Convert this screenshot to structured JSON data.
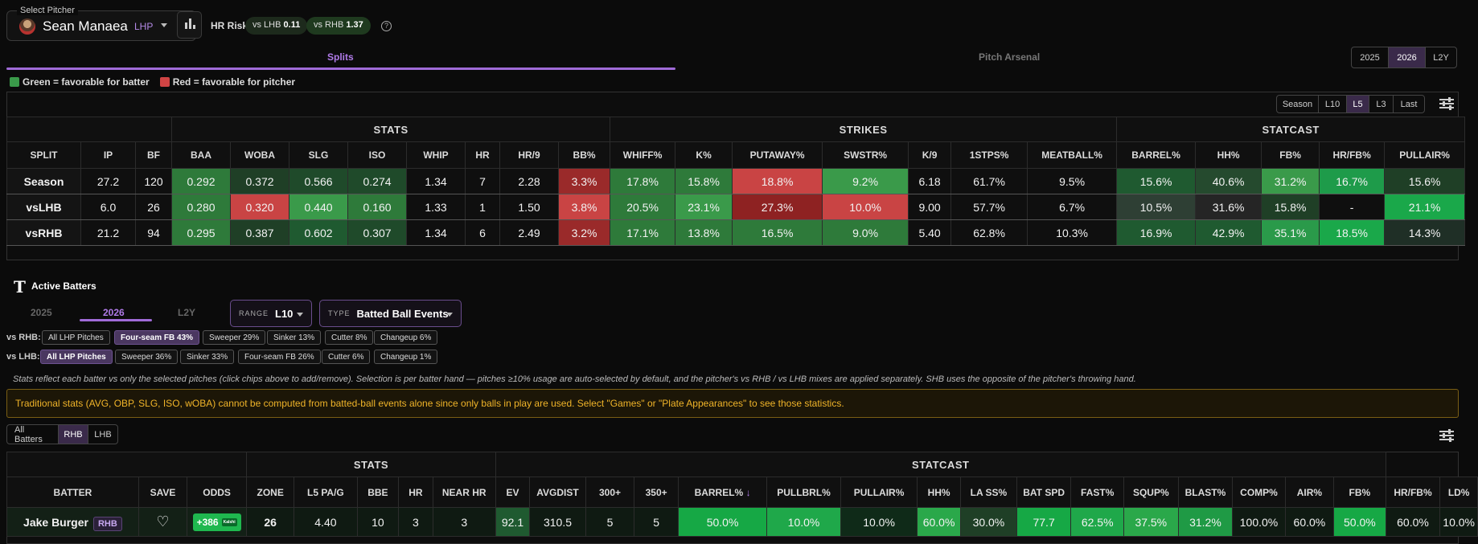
{
  "header": {
    "select_label": "Select Pitcher",
    "pitcher_name": "Sean Manaea",
    "pitcher_hand": "LHP",
    "hr_risk_label": "HR Risk",
    "vs_lhb_label": "vs LHB",
    "vs_lhb_value": "0.11",
    "vs_rhb_label": "vs RHB",
    "vs_rhb_value": "1.37",
    "help": "?"
  },
  "tabs": {
    "splits": "Splits",
    "arsenal": "Pitch Arsenal"
  },
  "year_seg": [
    {
      "label": "2025",
      "on": false
    },
    {
      "label": "2026",
      "on": true
    },
    {
      "label": "L2Y",
      "on": false
    }
  ],
  "legend": {
    "green": "Green = favorable for batter",
    "red": "Red = favorable for pitcher",
    "green_color": "#3a9a4a",
    "red_color": "#d04444"
  },
  "range_seg": [
    {
      "label": "Season",
      "on": false
    },
    {
      "label": "L10",
      "on": false
    },
    {
      "label": "L5",
      "on": true
    },
    {
      "label": "L3",
      "on": false
    },
    {
      "label": "Last",
      "on": false
    }
  ],
  "splits": {
    "groups": [
      {
        "label": "",
        "span": 3
      },
      {
        "label": "STATS",
        "span": 8
      },
      {
        "label": "STRIKES",
        "span": 7
      },
      {
        "label": "STATCAST",
        "span": 5
      }
    ],
    "columns": [
      "SPLIT",
      "IP",
      "BF",
      "BAA",
      "WOBA",
      "SLG",
      "ISO",
      "WHIP",
      "HR",
      "HR/9",
      "BB%",
      "WHIFF%",
      "K%",
      "PUTAWAY%",
      "SWSTR%",
      "K/9",
      "1STPS%",
      "MEATBALL%",
      "BARREL%",
      "HH%",
      "FB%",
      "HR/FB%",
      "PULLAIR%"
    ],
    "rows": [
      {
        "cells": [
          "Season",
          "27.2",
          "120",
          "0.292",
          "0.372",
          "0.566",
          "0.274",
          "1.34",
          "7",
          "2.28",
          "3.3%",
          "17.8%",
          "15.8%",
          "18.8%",
          "9.2%",
          "6.18",
          "61.7%",
          "9.5%",
          "15.6%",
          "40.6%",
          "31.2%",
          "16.7%",
          "15.6%"
        ],
        "colors": [
          "#141414",
          "#0f0f0f",
          "#0f0f0f",
          "#2e7a3a",
          "#1f3f26",
          "#1f4a2a",
          "#1f4a2a",
          "#0f0f0f",
          "#0f0f0f",
          "#0f0f0f",
          "#9a2a2a",
          "#2e7a3a",
          "#2e7a3a",
          "#c94444",
          "#3a9a4a",
          "#0f0f0f",
          "#0f0f0f",
          "#0f0f0f",
          "#1f5a30",
          "#254a2e",
          "#3a9a4a",
          "#1e9b4a",
          "#1f3f26"
        ]
      },
      {
        "cells": [
          "vsLHB",
          "6.0",
          "26",
          "0.280",
          "0.320",
          "0.440",
          "0.160",
          "1.33",
          "1",
          "1.50",
          "3.8%",
          "20.5%",
          "23.1%",
          "27.3%",
          "10.0%",
          "9.00",
          "57.7%",
          "6.7%",
          "10.5%",
          "31.6%",
          "15.8%",
          "-",
          "21.1%"
        ],
        "colors": [
          "#141414",
          "#0f0f0f",
          "#0f0f0f",
          "#2e7a3a",
          "#c94444",
          "#3a9a4a",
          "#2e7a3a",
          "#0f0f0f",
          "#0f0f0f",
          "#0f0f0f",
          "#c94444",
          "#2e7a3a",
          "#3a9a4a",
          "#8e2222",
          "#c94444",
          "#0f0f0f",
          "#0f0f0f",
          "#0f0f0f",
          "#2e3f34",
          "#252525",
          "#1f3f26",
          "#0f0f0f",
          "#1aa84a"
        ]
      },
      {
        "cells": [
          "vsRHB",
          "21.2",
          "94",
          "0.295",
          "0.387",
          "0.602",
          "0.307",
          "1.34",
          "6",
          "2.49",
          "3.2%",
          "17.1%",
          "13.8%",
          "16.5%",
          "9.0%",
          "5.40",
          "62.8%",
          "10.3%",
          "16.9%",
          "42.9%",
          "35.1%",
          "18.5%",
          "14.3%"
        ],
        "colors": [
          "#141414",
          "#0f0f0f",
          "#0f0f0f",
          "#2e7a3a",
          "#1f3f26",
          "#1f5a30",
          "#1f4a2a",
          "#0f0f0f",
          "#0f0f0f",
          "#0f0f0f",
          "#9a2a2a",
          "#2e7a3a",
          "#2e7a3a",
          "#2e7a3a",
          "#2e7a3a",
          "#0f0f0f",
          "#0f0f0f",
          "#0f0f0f",
          "#1f5a30",
          "#1f5a30",
          "#2a9a4a",
          "#1aa84a",
          "#1f2f26"
        ]
      }
    ]
  },
  "active": {
    "title": "Active Batters",
    "team_logo": "T",
    "years": [
      {
        "label": "2025",
        "on": false
      },
      {
        "label": "2026",
        "on": true
      },
      {
        "label": "L2Y",
        "on": false
      }
    ],
    "range_key": "RANGE",
    "range_value": "L10",
    "type_key": "TYPE",
    "type_value": "Batted Ball Events",
    "vs_rhb_label": "vs RHB:",
    "vs_lhb_label": "vs LHB:",
    "rhb_chips": [
      {
        "label": "All LHP Pitches",
        "on": false
      },
      {
        "label": "Four-seam FB 43%",
        "on": true
      },
      {
        "label": "Sweeper 29%",
        "on": false
      },
      {
        "label": "Sinker 13%",
        "on": false
      },
      {
        "label": "Cutter 8%",
        "on": false
      },
      {
        "label": "Changeup 6%",
        "on": false
      }
    ],
    "lhb_chips": [
      {
        "label": "All LHP Pitches",
        "on": true
      },
      {
        "label": "Sweeper 36%",
        "on": false
      },
      {
        "label": "Sinker 33%",
        "on": false
      },
      {
        "label": "Four-seam FB 26%",
        "on": false
      },
      {
        "label": "Cutter 6%",
        "on": false
      },
      {
        "label": "Changeup 1%",
        "on": false
      }
    ],
    "note": "Stats reflect each batter vs only the selected pitches (click chips above to add/remove). Selection is per batter hand — pitches ≥10% usage are auto-selected by default, and the pitcher's vs RHB / vs LHB mixes are applied separately. SHB uses the opposite of the pitcher's throwing hand.",
    "warning": "Traditional stats (AVG, OBP, SLG, ISO, wOBA) cannot be computed from batted-ball events alone since only balls in play are used. Select \"Games\" or \"Plate Appearances\" to see those statistics.",
    "hand_filter": [
      {
        "label": "All Batters",
        "on": false
      },
      {
        "label": "RHB",
        "on": true
      },
      {
        "label": "LHB",
        "on": false
      }
    ]
  },
  "batters": {
    "groups": [
      {
        "label": "",
        "span": 3
      },
      {
        "label": "STATS",
        "span": 5
      },
      {
        "label": "STATCAST",
        "span": 16
      }
    ],
    "columns": [
      "BATTER",
      "SAVE",
      "ODDS",
      "ZONE",
      "L5 PA/G",
      "BBE",
      "HR",
      "NEAR HR",
      "EV",
      "AVGDIST",
      "300+",
      "350+",
      "BARREL%",
      "PULLBRL%",
      "PULLAIR%",
      "HH%",
      "LA SS%",
      "BAT SPD",
      "FAST%",
      "SQUP%",
      "BLAST%",
      "COMP%",
      "AIR%",
      "FB%",
      "HR/FB%",
      "LD%"
    ],
    "sort_col": "BARREL%",
    "sort_icon": "↓",
    "rows": [
      {
        "name": "Jake Burger",
        "hand": "RHB",
        "odds": "+386",
        "book": "Kalshi",
        "cells": [
          "26",
          "4.40",
          "10",
          "3",
          "3",
          "92.1",
          "310.5",
          "5",
          "5",
          "50.0%",
          "10.0%",
          "10.0%",
          "60.0%",
          "30.0%",
          "77.7",
          "62.5%",
          "37.5%",
          "31.2%",
          "100.0%",
          "60.0%",
          "50.0%",
          "60.0%",
          "10.0%"
        ],
        "colors": [
          "#0f1a12",
          "#0f1a12",
          "#0f1a12",
          "#0f1a12",
          "#0f1a12",
          "#1f5a30",
          "#0f1a12",
          "#0f1a12",
          "#0f1a12",
          "#16a845",
          "#1fa84a",
          "#0f2a18",
          "#2aa84a",
          "#1f3f26",
          "#16a845",
          "#1fa84a",
          "#2aa84a",
          "#1f9a45",
          "#0f1a12",
          "#0f1a12",
          "#16a845",
          "#0f1a12",
          "#0f1a12"
        ]
      }
    ]
  }
}
